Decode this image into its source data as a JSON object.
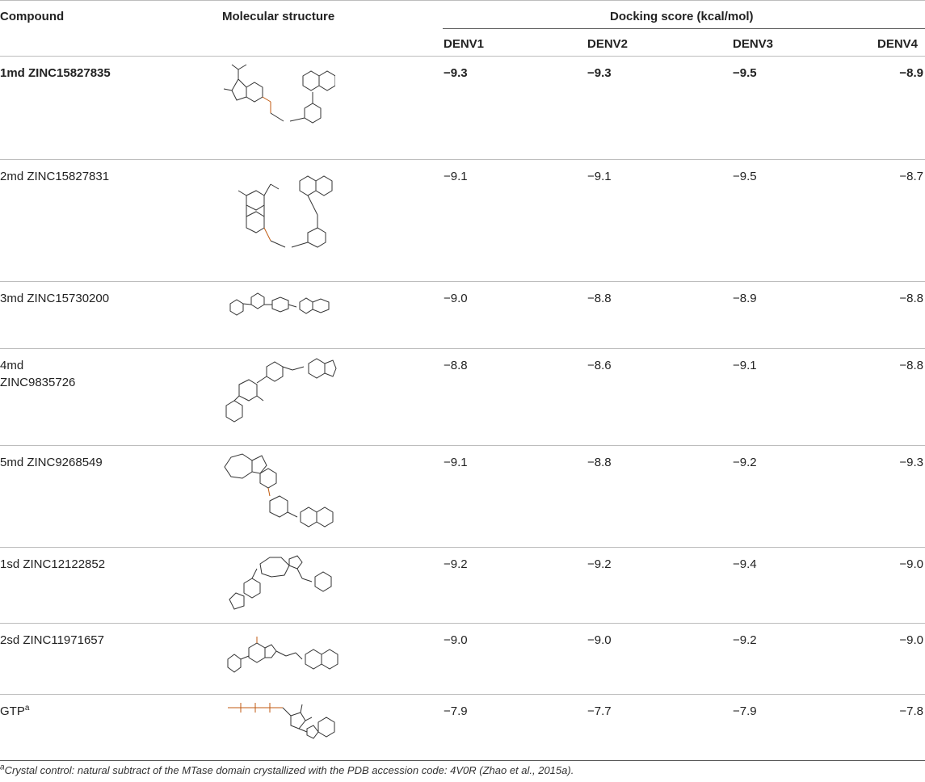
{
  "table": {
    "headers": {
      "compound": "Compound",
      "structure": "Molecular structure",
      "score_group": "Docking score (kcal/mol)",
      "serotypes": [
        "DENV1",
        "DENV2",
        "DENV3",
        "DENV4"
      ]
    },
    "rows": [
      {
        "compound": "1md ZINC15827835",
        "bold": true,
        "scores": [
          "−9.3",
          "−9.3",
          "−9.5",
          "−8.9"
        ],
        "structure_icon": "indoline-sulfonamide-quinoline-structure"
      },
      {
        "compound": "2md ZINC15827831",
        "bold": false,
        "scores": [
          "−9.1",
          "−9.1",
          "−9.5",
          "−8.7"
        ],
        "structure_icon": "benzoxazine-sulfonamide-quinoline-structure"
      },
      {
        "compound": "3md ZINC15730200",
        "bold": false,
        "scores": [
          "−9.0",
          "−8.8",
          "−8.9",
          "−8.8"
        ],
        "structure_icon": "pyridazinone-piperazine-structure"
      },
      {
        "compound_line1": "4md",
        "compound_line2": "ZINC9835726",
        "bold": false,
        "scores": [
          "−8.8",
          "−8.6",
          "−9.1",
          "−8.8"
        ],
        "structure_icon": "chromane-indole-amide-structure"
      },
      {
        "compound": "5md ZINC9268549",
        "bold": false,
        "scores": [
          "−9.1",
          "−8.8",
          "−9.2",
          "−9.3"
        ],
        "structure_icon": "carbazole-sulfonyl-piperidine-structure"
      },
      {
        "compound": "1sd ZINC12122852",
        "bold": false,
        "scores": [
          "−9.2",
          "−9.2",
          "−9.4",
          "−9.0"
        ],
        "structure_icon": "triazolodiazepine-structure"
      },
      {
        "compound": "2sd ZINC11971657",
        "bold": false,
        "scores": [
          "−9.0",
          "−9.0",
          "−9.2",
          "−9.0"
        ],
        "structure_icon": "benzofuran-naphthyl-acetamide-structure"
      },
      {
        "compound": "GTP",
        "compound_sup": "a",
        "bold": false,
        "scores": [
          "−7.9",
          "−7.7",
          "−7.9",
          "−7.8"
        ],
        "structure_icon": "gtp-structure"
      }
    ]
  },
  "footnote": {
    "marker": "a",
    "text": "Crystal control: natural subtract of the MTase domain crystallized with the PDB accession code: 4V0R (Zhao et al., 2015a)."
  }
}
